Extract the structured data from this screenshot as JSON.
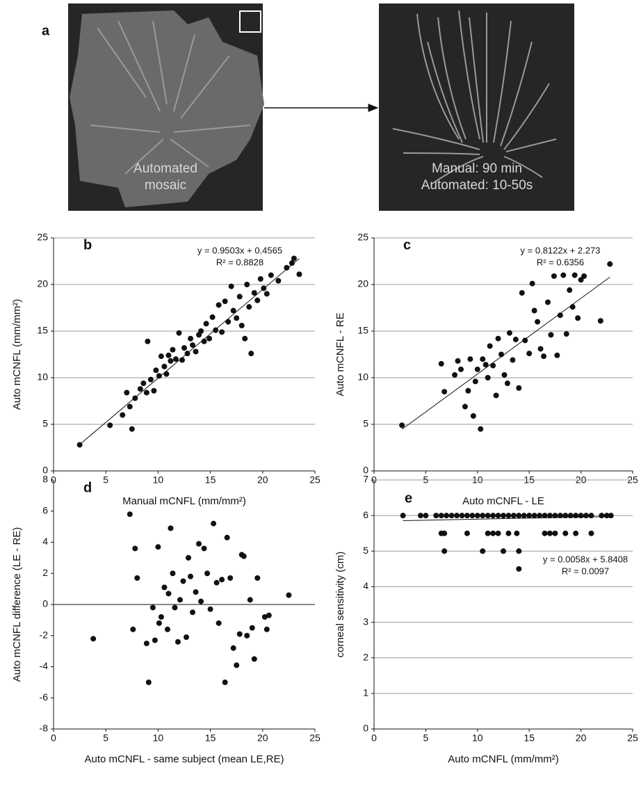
{
  "figure_a": {
    "label": "a",
    "left_caption": [
      "Automated",
      "mosaic"
    ],
    "right_caption": [
      "Manual: 90 min",
      "Automated: 10-50s"
    ]
  },
  "chart_data": [
    {
      "type": "scatter",
      "panel": "b",
      "x_label": "Manual mCNFL (mm/mm²)",
      "y_label": "Auto mCNFL (mm/mm²)",
      "fit": {
        "label": "y = 0.9503x + 0.4565",
        "r2_label": "R² = 0.8828",
        "slope": 0.9503,
        "intercept": 0.4565
      },
      "xlim": [
        0,
        25
      ],
      "ylim": [
        0,
        25
      ],
      "xticks": [
        0,
        5,
        10,
        15,
        20,
        25
      ],
      "yticks": [
        0,
        5,
        10,
        15,
        20,
        25
      ],
      "grid": true,
      "color": "#111111",
      "x": [
        2.5,
        5.4,
        6.6,
        7.0,
        7.3,
        7.5,
        7.8,
        8.3,
        8.6,
        8.9,
        9.0,
        9.3,
        9.6,
        9.8,
        10.1,
        10.3,
        10.6,
        10.8,
        11.0,
        11.2,
        11.4,
        11.7,
        12.0,
        12.3,
        12.5,
        12.8,
        13.1,
        13.3,
        13.6,
        13.9,
        14.1,
        14.4,
        14.6,
        14.9,
        15.2,
        15.5,
        15.8,
        16.1,
        16.4,
        16.7,
        17.0,
        17.2,
        17.5,
        17.8,
        18.0,
        18.3,
        18.5,
        18.7,
        18.9,
        19.2,
        19.5,
        19.8,
        20.1,
        20.4,
        20.8,
        21.5,
        22.3,
        22.8,
        23.0,
        23.5
      ],
      "y": [
        2.8,
        4.9,
        6.0,
        8.4,
        6.9,
        4.5,
        7.8,
        8.8,
        9.4,
        8.4,
        13.9,
        9.8,
        8.6,
        10.8,
        10.2,
        12.3,
        11.2,
        10.4,
        12.4,
        11.8,
        13.0,
        12.0,
        14.8,
        11.9,
        13.2,
        12.6,
        14.2,
        13.5,
        12.8,
        14.6,
        15.0,
        13.9,
        15.8,
        14.2,
        16.5,
        15.1,
        17.8,
        14.9,
        18.2,
        16.0,
        19.8,
        17.2,
        16.4,
        18.7,
        15.6,
        14.2,
        20.0,
        17.6,
        12.6,
        19.1,
        18.3,
        20.6,
        19.6,
        19.0,
        21.0,
        20.4,
        21.8,
        22.3,
        22.8,
        21.1
      ]
    },
    {
      "type": "scatter",
      "panel": "c",
      "x_label": "Auto mCNFL - LE",
      "y_label": "Auto mCNFL - RE",
      "fit": {
        "label": "y = 0.8122x + 2.273",
        "r2_label": "R² = 0.6356",
        "slope": 0.8122,
        "intercept": 2.273
      },
      "xlim": [
        0,
        25
      ],
      "ylim": [
        0,
        25
      ],
      "xticks": [
        0,
        5,
        10,
        15,
        20,
        25
      ],
      "yticks": [
        0,
        5,
        10,
        15,
        20,
        25
      ],
      "grid": true,
      "color": "#111111",
      "x": [
        2.7,
        6.5,
        6.8,
        7.8,
        8.1,
        8.4,
        8.8,
        9.1,
        9.3,
        9.6,
        9.8,
        10.0,
        10.3,
        10.5,
        10.8,
        11.0,
        11.2,
        11.5,
        11.8,
        12.0,
        12.3,
        12.6,
        12.9,
        13.1,
        13.4,
        13.7,
        14.0,
        14.3,
        14.6,
        15.0,
        15.3,
        15.5,
        15.8,
        16.1,
        16.4,
        16.8,
        17.1,
        17.4,
        17.7,
        18.0,
        18.3,
        18.6,
        18.9,
        19.2,
        19.4,
        19.7,
        20.0,
        20.3,
        21.9,
        22.8
      ],
      "y": [
        4.9,
        11.5,
        8.5,
        10.3,
        11.8,
        10.9,
        6.9,
        8.6,
        12.0,
        5.9,
        9.6,
        10.9,
        4.5,
        12.0,
        11.4,
        10.0,
        13.4,
        11.3,
        8.1,
        14.2,
        12.5,
        10.3,
        9.4,
        14.8,
        11.9,
        14.1,
        8.9,
        19.1,
        14.0,
        12.6,
        20.1,
        17.2,
        16.0,
        13.1,
        12.3,
        18.1,
        14.6,
        20.9,
        12.4,
        16.7,
        21.0,
        14.7,
        19.4,
        17.6,
        21.0,
        16.4,
        20.5,
        20.9,
        16.1,
        22.2
      ]
    },
    {
      "type": "scatter",
      "panel": "d",
      "x_label": "Auto mCNFL - same subject (mean LE,RE)",
      "y_label": "Auto mCNFL difference (LE - RE)",
      "xlim": [
        0,
        25
      ],
      "ylim": [
        -8,
        8
      ],
      "xticks": [
        0,
        5,
        10,
        15,
        20,
        25
      ],
      "yticks": [
        -8,
        -6,
        -4,
        -2,
        0,
        2,
        4,
        6,
        8
      ],
      "grid": false,
      "color": "#111111",
      "x": [
        3.8,
        7.3,
        7.6,
        7.8,
        8.0,
        8.9,
        9.1,
        9.5,
        9.7,
        10.0,
        10.1,
        10.3,
        10.6,
        10.9,
        11.0,
        11.2,
        11.4,
        11.6,
        11.9,
        12.1,
        12.4,
        12.7,
        12.9,
        13.1,
        13.3,
        13.6,
        13.9,
        14.1,
        14.4,
        14.7,
        15.0,
        15.3,
        15.6,
        15.8,
        16.1,
        16.4,
        16.6,
        16.9,
        17.2,
        17.5,
        17.8,
        18.0,
        18.2,
        18.5,
        18.8,
        19.0,
        19.2,
        19.5,
        20.2,
        20.4,
        20.6,
        22.5
      ],
      "y": [
        -2.2,
        5.8,
        -1.6,
        3.6,
        1.7,
        -2.5,
        -5.0,
        -0.2,
        -2.3,
        3.7,
        -1.2,
        -0.8,
        1.1,
        -1.6,
        0.7,
        4.9,
        2.0,
        -0.2,
        -2.4,
        0.3,
        1.5,
        -2.1,
        3.0,
        1.8,
        -0.5,
        0.8,
        3.9,
        0.2,
        3.6,
        2.0,
        -0.3,
        5.2,
        1.4,
        -1.2,
        1.6,
        -5.0,
        4.3,
        1.7,
        -2.8,
        -3.9,
        -1.9,
        3.2,
        3.1,
        -2.0,
        0.3,
        -1.5,
        -3.5,
        1.7,
        -0.8,
        -1.6,
        -0.7,
        0.6
      ]
    },
    {
      "type": "scatter",
      "panel": "e",
      "x_label": "Auto mCNFL (mm/mm²)",
      "y_label": "corneal sensitivity (cm)",
      "fit": {
        "label": "y = 0.0058x + 5.8408",
        "r2_label": "R² = 0.0097",
        "slope": 0.0058,
        "intercept": 5.8408
      },
      "xlim": [
        0,
        25
      ],
      "ylim": [
        0,
        7
      ],
      "xticks": [
        0,
        5,
        10,
        15,
        20,
        25
      ],
      "yticks": [
        0,
        1,
        2,
        3,
        4,
        5,
        6,
        7
      ],
      "grid": true,
      "color": "#111111",
      "x": [
        2.8,
        4.5,
        5.0,
        6.0,
        6.5,
        7.0,
        7.5,
        8.0,
        8.5,
        9.0,
        9.5,
        10.0,
        10.5,
        11.0,
        11.5,
        12.0,
        12.5,
        13.0,
        13.5,
        14.0,
        14.5,
        15.0,
        15.5,
        16.0,
        16.5,
        17.0,
        17.5,
        18.0,
        18.5,
        19.0,
        19.5,
        20.0,
        20.5,
        21.0,
        22.0,
        22.5,
        22.9,
        6.5,
        6.8,
        9.0,
        11.0,
        11.5,
        12.0,
        13.0,
        13.8,
        16.5,
        17.0,
        17.5,
        18.5,
        19.5,
        21.0,
        6.8,
        10.5,
        12.5,
        14.0,
        14.0
      ],
      "y": [
        6,
        6,
        6,
        6,
        6,
        6,
        6,
        6,
        6,
        6,
        6,
        6,
        6,
        6,
        6,
        6,
        6,
        6,
        6,
        6,
        6,
        6,
        6,
        6,
        6,
        6,
        6,
        6,
        6,
        6,
        6,
        6,
        6,
        6,
        6,
        6,
        6,
        5.5,
        5.5,
        5.5,
        5.5,
        5.5,
        5.5,
        5.5,
        5.5,
        5.5,
        5.5,
        5.5,
        5.5,
        5.5,
        5.5,
        5,
        5,
        5,
        5,
        4.5
      ]
    }
  ]
}
